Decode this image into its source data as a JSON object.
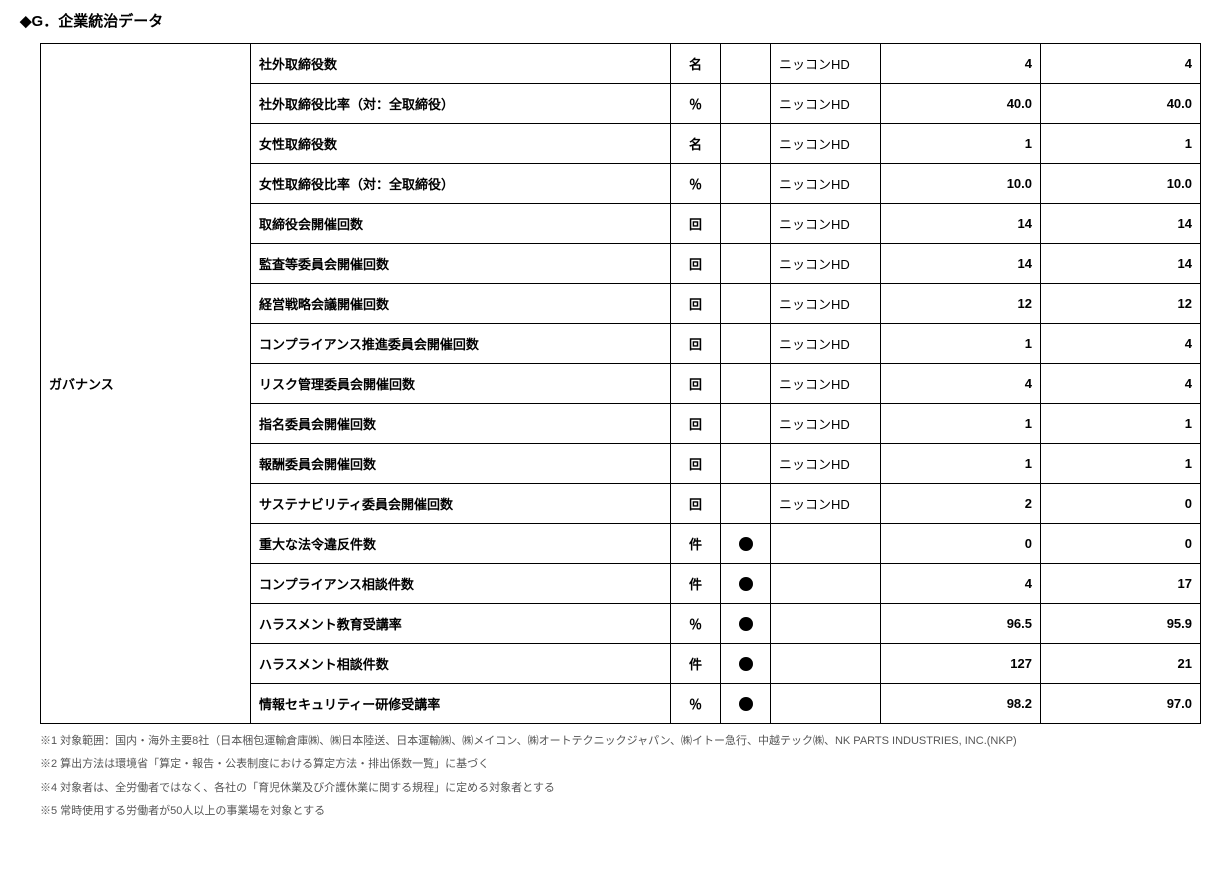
{
  "title": "◆G．企業統治データ",
  "category_label": "ガバナンス",
  "scope_label": "ニッコンHD",
  "rows": [
    {
      "label": "社外取締役数",
      "unit": "名",
      "mark": "",
      "scope": true,
      "valA": "4",
      "valB": "4"
    },
    {
      "label": "社外取締役比率（対：全取締役）",
      "unit": "％",
      "mark": "",
      "scope": true,
      "valA": "40.0",
      "valB": "40.0"
    },
    {
      "label": "女性取締役数",
      "unit": "名",
      "mark": "",
      "scope": true,
      "valA": "1",
      "valB": "1"
    },
    {
      "label": "女性取締役比率（対：全取締役）",
      "unit": "％",
      "mark": "",
      "scope": true,
      "valA": "10.0",
      "valB": "10.0"
    },
    {
      "label": "取締役会開催回数",
      "unit": "回",
      "mark": "",
      "scope": true,
      "valA": "14",
      "valB": "14"
    },
    {
      "label": "監査等委員会開催回数",
      "unit": "回",
      "mark": "",
      "scope": true,
      "valA": "14",
      "valB": "14"
    },
    {
      "label": "経営戦略会議開催回数",
      "unit": "回",
      "mark": "",
      "scope": true,
      "valA": "12",
      "valB": "12"
    },
    {
      "label": "コンプライアンス推進委員会開催回数",
      "unit": "回",
      "mark": "",
      "scope": true,
      "valA": "1",
      "valB": "4"
    },
    {
      "label": "リスク管理委員会開催回数",
      "unit": "回",
      "mark": "",
      "scope": true,
      "valA": "4",
      "valB": "4"
    },
    {
      "label": "指名委員会開催回数",
      "unit": "回",
      "mark": "",
      "scope": true,
      "valA": "1",
      "valB": "1"
    },
    {
      "label": "報酬委員会開催回数",
      "unit": "回",
      "mark": "",
      "scope": true,
      "valA": "1",
      "valB": "1"
    },
    {
      "label": "サステナビリティ委員会開催回数",
      "unit": "回",
      "mark": "",
      "scope": true,
      "valA": "2",
      "valB": "0"
    },
    {
      "label": "重大な法令違反件数",
      "unit": "件",
      "mark": "dot",
      "scope": false,
      "valA": "0",
      "valB": "0"
    },
    {
      "label": "コンプライアンス相談件数",
      "unit": "件",
      "mark": "dot",
      "scope": false,
      "valA": "4",
      "valB": "17"
    },
    {
      "label": "ハラスメント教育受講率",
      "unit": "％",
      "mark": "dot",
      "scope": false,
      "valA": "96.5",
      "valB": "95.9"
    },
    {
      "label": "ハラスメント相談件数",
      "unit": "件",
      "mark": "dot",
      "scope": false,
      "valA": "127",
      "valB": "21"
    },
    {
      "label": "情報セキュリティー研修受講率",
      "unit": "％",
      "mark": "dot",
      "scope": false,
      "valA": "98.2",
      "valB": "97.0"
    }
  ],
  "footnotes": [
    "※1 対象範囲：国内・海外主要8社（日本梱包運輸倉庫㈱、㈱日本陸送、日本運輸㈱、㈱メイコン、㈱オートテクニックジャパン、㈱イトー急行、中越テック㈱、NK PARTS INDUSTRIES, INC.(NKP)",
    "※2 算出方法は環境省「算定・報告・公表制度における算定方法・排出係数一覧」に基づく",
    "※4 対象者は、全労働者ではなく、各社の「育児休業及び介護休業に関する規程」に定める対象者とする",
    "※5 常時使用する労働者が50人以上の事業場を対象とする"
  ],
  "colors": {
    "text": "#000000",
    "border": "#000000",
    "footnote": "#565656",
    "background": "#ffffff"
  }
}
